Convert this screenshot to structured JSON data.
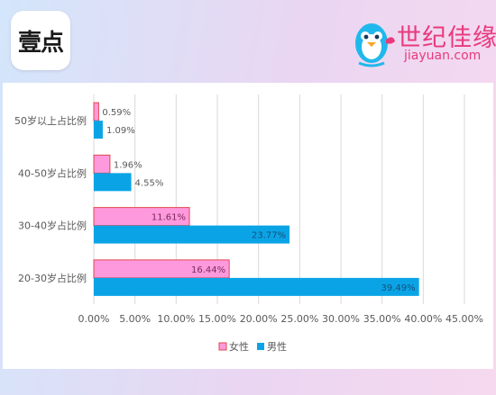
{
  "logo_left": {
    "text": "壹点"
  },
  "logo_right": {
    "cn": "世纪佳缘",
    "en": "jiayuan.com"
  },
  "chart_data": {
    "type": "bar",
    "orientation": "horizontal",
    "categories": [
      "50岁以上占比例",
      "40-50岁占比例",
      "30-40岁占比例",
      "20-30岁占比例"
    ],
    "series": [
      {
        "name": "女性",
        "color": "#ff99dd",
        "values": [
          0.59,
          1.96,
          11.61,
          16.44
        ],
        "labels": [
          "0.59%",
          "1.96%",
          "11.61%",
          "16.44%"
        ]
      },
      {
        "name": "男性",
        "color": "#0aa4e6",
        "values": [
          1.09,
          4.55,
          23.77,
          39.49
        ],
        "labels": [
          "1.09%",
          "4.55%",
          "23.77%",
          "39.49%"
        ]
      }
    ],
    "xlim": [
      0,
      45
    ],
    "xticks": [
      "0.00%",
      "5.00%",
      "10.00%",
      "15.00%",
      "20.00%",
      "25.00%",
      "30.00%",
      "35.00%",
      "40.00%",
      "45.00%"
    ],
    "grid": true,
    "legend": "bottom"
  }
}
